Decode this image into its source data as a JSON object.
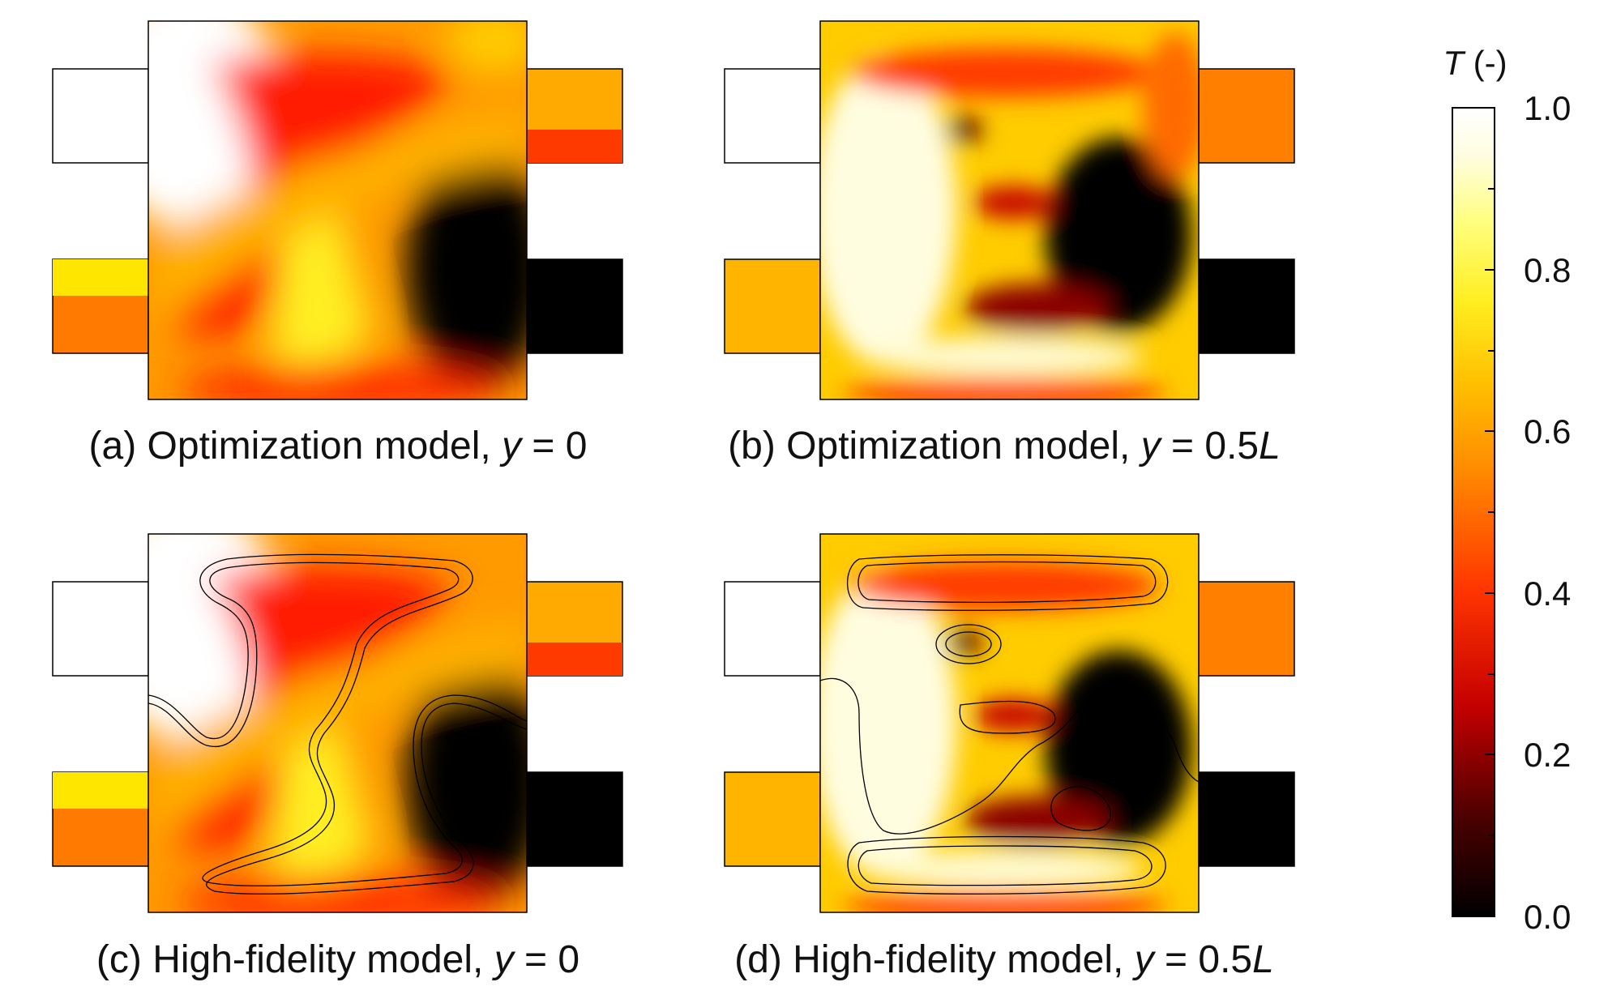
{
  "panels": [
    {
      "id": "a",
      "label": "(a)",
      "title": "Optimization model,",
      "var": "y",
      "value_prefix": " = 0",
      "value_italic": ""
    },
    {
      "id": "b",
      "label": "(b)",
      "title": "Optimization model,",
      "var": "y",
      "value_prefix": " = 0.5",
      "value_italic": "L"
    },
    {
      "id": "c",
      "label": "(c)",
      "title": "High-fidelity model,",
      "var": "y",
      "value_prefix": " = 0",
      "value_italic": ""
    },
    {
      "id": "d",
      "label": "(d)",
      "title": "High-fidelity model,",
      "var": "y",
      "value_prefix": " = 0.5",
      "value_italic": "L"
    }
  ],
  "colorbar": {
    "symbol": "T",
    "unit": " (-)",
    "ticks": [
      "1.0",
      "0.8",
      "0.6",
      "0.4",
      "0.2",
      "0.0"
    ],
    "colors": [
      "#000000",
      "#5a0000",
      "#c00000",
      "#ff2a00",
      "#ff7a00",
      "#ffb400",
      "#ffe200",
      "#ffff5a",
      "#fffdd0",
      "#ffffff"
    ]
  }
}
